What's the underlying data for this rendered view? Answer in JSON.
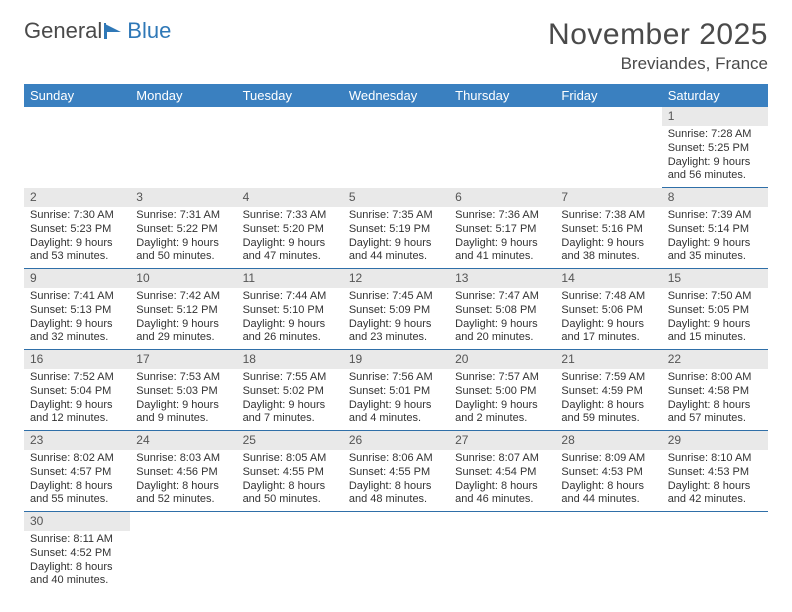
{
  "logo": {
    "text_a": "General",
    "text_b": "Blue"
  },
  "title": "November 2025",
  "location": "Breviandes, France",
  "colors": {
    "header_bg": "#3a80c0",
    "rule": "#2f6fa8",
    "daynum_bg": "#e9e9e9",
    "text": "#333333",
    "logo_gray": "#4a4a4a",
    "logo_blue": "#2f78b7"
  },
  "weekdays": [
    "Sunday",
    "Monday",
    "Tuesday",
    "Wednesday",
    "Thursday",
    "Friday",
    "Saturday"
  ],
  "first_weekday_index": 6,
  "days": [
    {
      "n": 1,
      "sunrise": "7:28 AM",
      "sunset": "5:25 PM",
      "daylight": "9 hours and 56 minutes."
    },
    {
      "n": 2,
      "sunrise": "7:30 AM",
      "sunset": "5:23 PM",
      "daylight": "9 hours and 53 minutes."
    },
    {
      "n": 3,
      "sunrise": "7:31 AM",
      "sunset": "5:22 PM",
      "daylight": "9 hours and 50 minutes."
    },
    {
      "n": 4,
      "sunrise": "7:33 AM",
      "sunset": "5:20 PM",
      "daylight": "9 hours and 47 minutes."
    },
    {
      "n": 5,
      "sunrise": "7:35 AM",
      "sunset": "5:19 PM",
      "daylight": "9 hours and 44 minutes."
    },
    {
      "n": 6,
      "sunrise": "7:36 AM",
      "sunset": "5:17 PM",
      "daylight": "9 hours and 41 minutes."
    },
    {
      "n": 7,
      "sunrise": "7:38 AM",
      "sunset": "5:16 PM",
      "daylight": "9 hours and 38 minutes."
    },
    {
      "n": 8,
      "sunrise": "7:39 AM",
      "sunset": "5:14 PM",
      "daylight": "9 hours and 35 minutes."
    },
    {
      "n": 9,
      "sunrise": "7:41 AM",
      "sunset": "5:13 PM",
      "daylight": "9 hours and 32 minutes."
    },
    {
      "n": 10,
      "sunrise": "7:42 AM",
      "sunset": "5:12 PM",
      "daylight": "9 hours and 29 minutes."
    },
    {
      "n": 11,
      "sunrise": "7:44 AM",
      "sunset": "5:10 PM",
      "daylight": "9 hours and 26 minutes."
    },
    {
      "n": 12,
      "sunrise": "7:45 AM",
      "sunset": "5:09 PM",
      "daylight": "9 hours and 23 minutes."
    },
    {
      "n": 13,
      "sunrise": "7:47 AM",
      "sunset": "5:08 PM",
      "daylight": "9 hours and 20 minutes."
    },
    {
      "n": 14,
      "sunrise": "7:48 AM",
      "sunset": "5:06 PM",
      "daylight": "9 hours and 17 minutes."
    },
    {
      "n": 15,
      "sunrise": "7:50 AM",
      "sunset": "5:05 PM",
      "daylight": "9 hours and 15 minutes."
    },
    {
      "n": 16,
      "sunrise": "7:52 AM",
      "sunset": "5:04 PM",
      "daylight": "9 hours and 12 minutes."
    },
    {
      "n": 17,
      "sunrise": "7:53 AM",
      "sunset": "5:03 PM",
      "daylight": "9 hours and 9 minutes."
    },
    {
      "n": 18,
      "sunrise": "7:55 AM",
      "sunset": "5:02 PM",
      "daylight": "9 hours and 7 minutes."
    },
    {
      "n": 19,
      "sunrise": "7:56 AM",
      "sunset": "5:01 PM",
      "daylight": "9 hours and 4 minutes."
    },
    {
      "n": 20,
      "sunrise": "7:57 AM",
      "sunset": "5:00 PM",
      "daylight": "9 hours and 2 minutes."
    },
    {
      "n": 21,
      "sunrise": "7:59 AM",
      "sunset": "4:59 PM",
      "daylight": "8 hours and 59 minutes."
    },
    {
      "n": 22,
      "sunrise": "8:00 AM",
      "sunset": "4:58 PM",
      "daylight": "8 hours and 57 minutes."
    },
    {
      "n": 23,
      "sunrise": "8:02 AM",
      "sunset": "4:57 PM",
      "daylight": "8 hours and 55 minutes."
    },
    {
      "n": 24,
      "sunrise": "8:03 AM",
      "sunset": "4:56 PM",
      "daylight": "8 hours and 52 minutes."
    },
    {
      "n": 25,
      "sunrise": "8:05 AM",
      "sunset": "4:55 PM",
      "daylight": "8 hours and 50 minutes."
    },
    {
      "n": 26,
      "sunrise": "8:06 AM",
      "sunset": "4:55 PM",
      "daylight": "8 hours and 48 minutes."
    },
    {
      "n": 27,
      "sunrise": "8:07 AM",
      "sunset": "4:54 PM",
      "daylight": "8 hours and 46 minutes."
    },
    {
      "n": 28,
      "sunrise": "8:09 AM",
      "sunset": "4:53 PM",
      "daylight": "8 hours and 44 minutes."
    },
    {
      "n": 29,
      "sunrise": "8:10 AM",
      "sunset": "4:53 PM",
      "daylight": "8 hours and 42 minutes."
    },
    {
      "n": 30,
      "sunrise": "8:11 AM",
      "sunset": "4:52 PM",
      "daylight": "8 hours and 40 minutes."
    }
  ],
  "labels": {
    "sunrise_prefix": "Sunrise: ",
    "sunset_prefix": "Sunset: ",
    "daylight_prefix": "Daylight: "
  }
}
